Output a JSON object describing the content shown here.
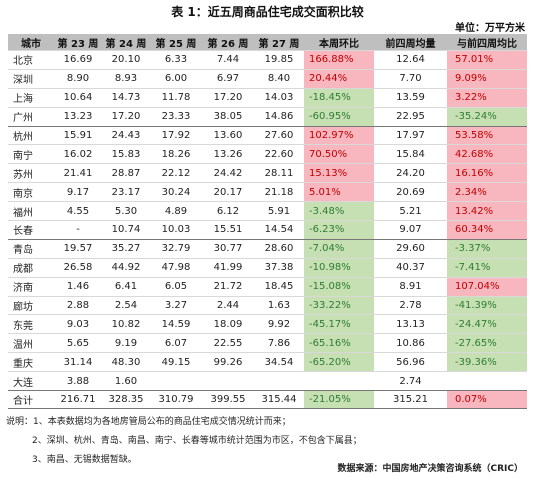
{
  "title": "表 1：近五周商品住宅成交面积比较",
  "unit": "单位：万平方米",
  "headers": [
    "城市",
    "第 23 周",
    "第 24 周",
    "第 25 周",
    "第 26 周",
    "第 27 周",
    "本周环比",
    "前四周均量",
    "与前四周均比"
  ],
  "rows": [
    {
      "city": "北京",
      "w23": "16.69",
      "w24": "20.10",
      "w25": "6.33",
      "w26": "7.44",
      "w27": "19.85",
      "wow": "166.88%",
      "avg4": "12.64",
      "vs4": "57.01%"
    },
    {
      "city": "深圳",
      "w23": "8.90",
      "w24": "8.93",
      "w25": "6.00",
      "w26": "6.97",
      "w27": "8.40",
      "wow": "20.44%",
      "avg4": "7.70",
      "vs4": "9.09%"
    },
    {
      "city": "上海",
      "w23": "10.64",
      "w24": "14.73",
      "w25": "11.78",
      "w26": "17.20",
      "w27": "14.03",
      "wow": "-18.45%",
      "avg4": "13.59",
      "vs4": "3.22%"
    },
    {
      "city": "广州",
      "w23": "13.23",
      "w24": "17.20",
      "w25": "23.33",
      "w26": "38.05",
      "w27": "14.86",
      "wow": "-60.95%",
      "avg4": "22.95",
      "vs4": "-35.24%"
    },
    {
      "city": "杭州",
      "w23": "15.91",
      "w24": "24.43",
      "w25": "17.92",
      "w26": "13.60",
      "w27": "27.60",
      "wow": "102.97%",
      "avg4": "17.97",
      "vs4": "53.58%"
    },
    {
      "city": "南宁",
      "w23": "16.02",
      "w24": "15.83",
      "w25": "18.26",
      "w26": "13.26",
      "w27": "22.60",
      "wow": "70.50%",
      "avg4": "15.84",
      "vs4": "42.68%"
    },
    {
      "city": "苏州",
      "w23": "21.41",
      "w24": "28.87",
      "w25": "22.12",
      "w26": "24.42",
      "w27": "28.11",
      "wow": "15.13%",
      "avg4": "24.20",
      "vs4": "16.16%"
    },
    {
      "city": "南京",
      "w23": "9.17",
      "w24": "23.17",
      "w25": "30.24",
      "w26": "20.17",
      "w27": "21.18",
      "wow": "5.01%",
      "avg4": "20.69",
      "vs4": "2.34%"
    },
    {
      "city": "福州",
      "w23": "4.55",
      "w24": "5.30",
      "w25": "4.89",
      "w26": "6.12",
      "w27": "5.91",
      "wow": "-3.48%",
      "avg4": "5.21",
      "vs4": "13.42%"
    },
    {
      "city": "长春",
      "w23": "-",
      "w24": "10.74",
      "w25": "10.03",
      "w26": "15.51",
      "w27": "14.54",
      "wow": "-6.23%",
      "avg4": "9.07",
      "vs4": "60.34%"
    },
    {
      "city": "青岛",
      "w23": "19.57",
      "w24": "35.27",
      "w25": "32.79",
      "w26": "30.77",
      "w27": "28.60",
      "wow": "-7.04%",
      "avg4": "29.60",
      "vs4": "-3.37%"
    },
    {
      "city": "成都",
      "w23": "26.58",
      "w24": "44.92",
      "w25": "47.98",
      "w26": "41.99",
      "w27": "37.38",
      "wow": "-10.98%",
      "avg4": "40.37",
      "vs4": "-7.41%"
    },
    {
      "city": "济南",
      "w23": "1.46",
      "w24": "6.41",
      "w25": "6.05",
      "w26": "21.72",
      "w27": "18.45",
      "wow": "-15.08%",
      "avg4": "8.91",
      "vs4": "107.04%"
    },
    {
      "city": "廊坊",
      "w23": "2.88",
      "w24": "2.54",
      "w25": "3.27",
      "w26": "2.44",
      "w27": "1.63",
      "wow": "-33.22%",
      "avg4": "2.78",
      "vs4": "-41.39%"
    },
    {
      "city": "东莞",
      "w23": "9.03",
      "w24": "10.82",
      "w25": "14.59",
      "w26": "18.09",
      "w27": "9.92",
      "wow": "-45.17%",
      "avg4": "13.13",
      "vs4": "-24.47%"
    },
    {
      "city": "温州",
      "w23": "5.65",
      "w24": "9.19",
      "w25": "6.07",
      "w26": "22.55",
      "w27": "7.86",
      "wow": "-65.16%",
      "avg4": "10.86",
      "vs4": "-27.65%"
    },
    {
      "city": "重庆",
      "w23": "31.14",
      "w24": "48.30",
      "w25": "49.15",
      "w26": "99.26",
      "w27": "34.54",
      "wow": "-65.20%",
      "avg4": "56.96",
      "vs4": "-39.36%"
    },
    {
      "city": "大连",
      "w23": "3.88",
      "w24": "1.60",
      "w25": "",
      "w26": "",
      "w27": "",
      "wow": "",
      "avg4": "2.74",
      "vs4": ""
    }
  ],
  "total": {
    "city": "合计",
    "w23": "216.71",
    "w24": "328.35",
    "w25": "310.79",
    "w26": "399.55",
    "w27": "315.44",
    "wow": "-21.05%",
    "avg4": "315.21",
    "vs4": "0.07%"
  },
  "notes": [
    "说明：1、本表数据均为各地房管局公布的商品住宅成交情况统计而来；",
    "2、深圳、杭州、青岛、南昌、南宁、长春等城市统计范围为市区，不包含下属县；",
    "3、南昌、无锡数据暂缺。"
  ],
  "source": "数据来源：中国房地产决策咨询系统（CRIC）",
  "colors": {
    "positive_bg": "#f8b6bf",
    "positive_text": "#c00000",
    "negative_bg": "#c6e0b4",
    "negative_text": "#2e7d32",
    "header_bg": "#bfbfbf"
  }
}
